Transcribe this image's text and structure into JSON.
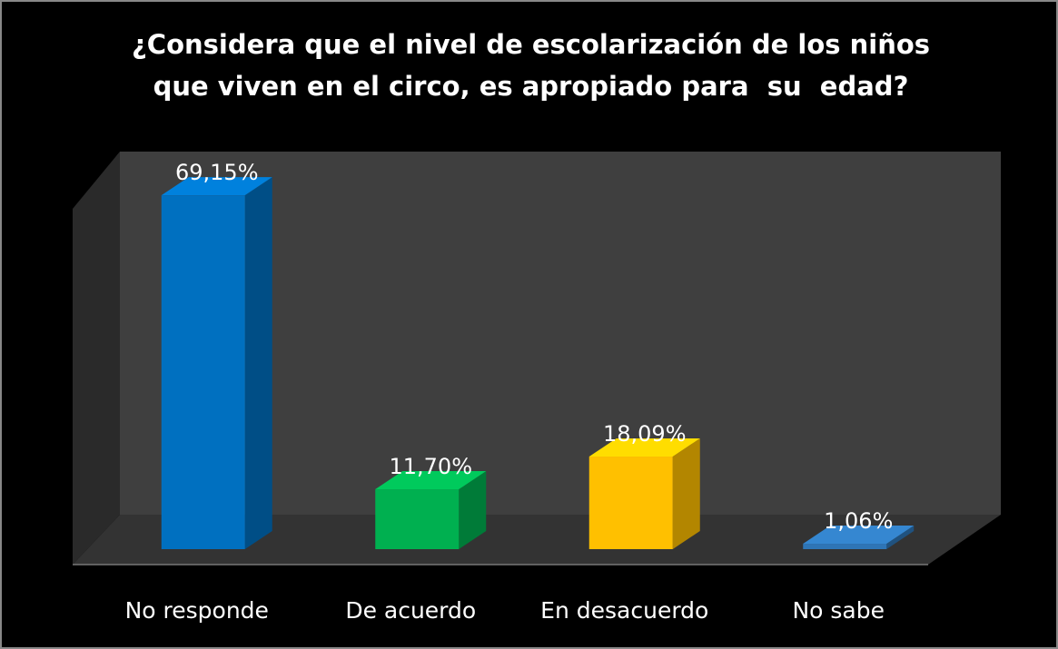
{
  "chart_data": {
    "type": "bar3d",
    "title": "¿Considera que el nivel de escolarización de los niños que viven en el circo, es apropiado para  su  edad?",
    "categories": [
      "No responde",
      "De acuerdo",
      "En desacuerdo",
      "No sabe"
    ],
    "values": [
      69.15,
      11.7,
      18.09,
      1.06
    ],
    "value_labels": [
      "69,15%",
      "11,70%",
      "18,09%",
      "1,06%"
    ],
    "colors": [
      "#0070c0",
      "#00b050",
      "#ffc000",
      "#2e75b6"
    ],
    "ylim": [
      0,
      80
    ]
  }
}
